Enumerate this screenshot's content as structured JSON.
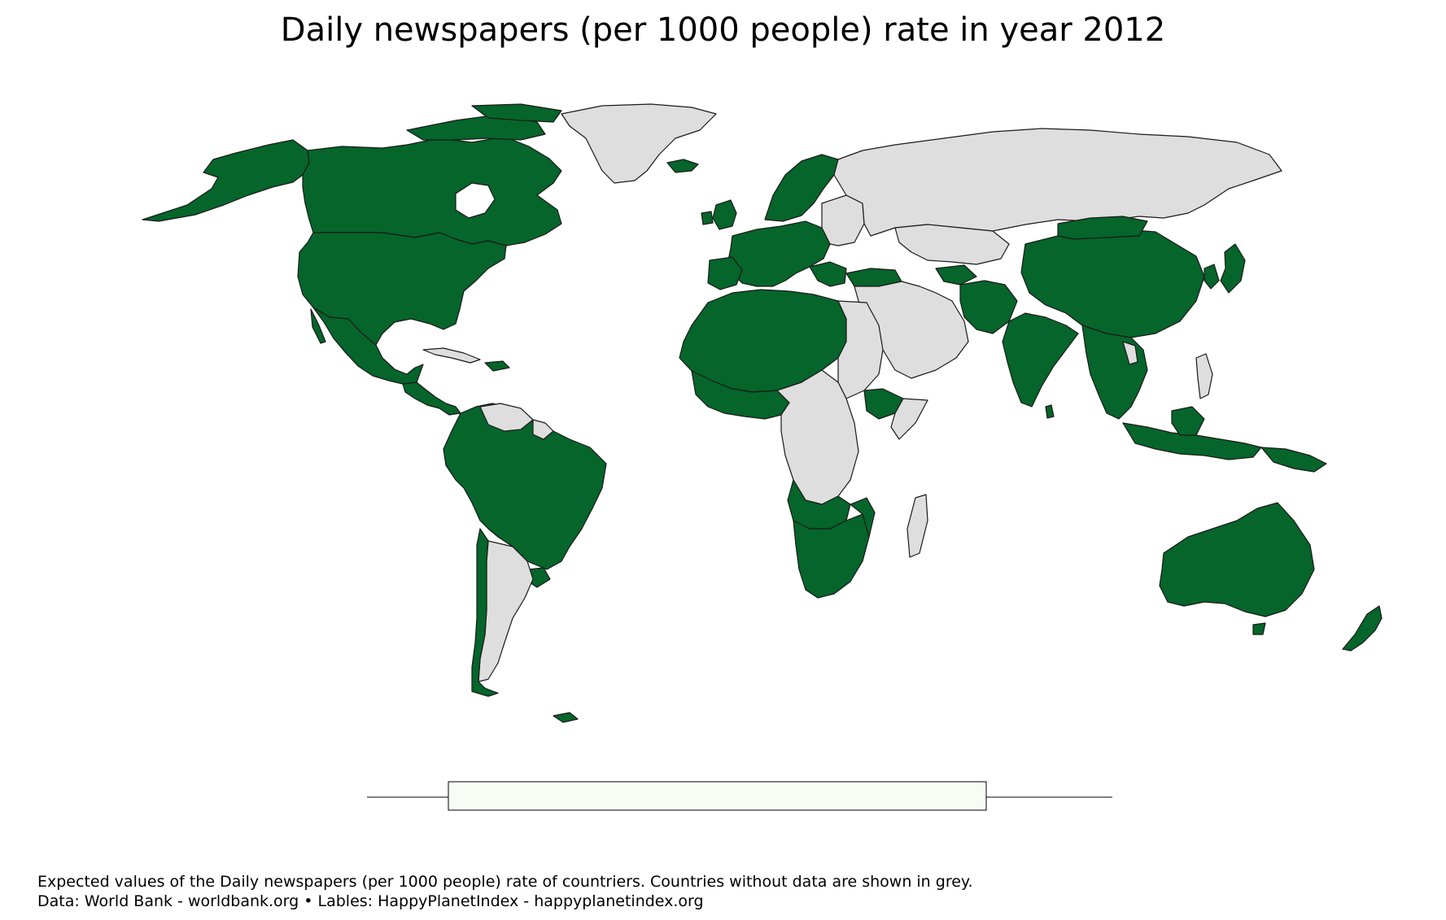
{
  "title": "Daily newspapers (per 1000 people) rate in year 2012",
  "colors": {
    "with_data": "#05652a",
    "no_data": "#dedede",
    "border": "#1a1a1a",
    "legend_box": "#f7fcf5"
  },
  "legend": {
    "type": "boxplot",
    "labels": []
  },
  "map": {
    "regions_with_data": [
      "Canada",
      "United States",
      "Mexico",
      "Guatemala",
      "Honduras",
      "Nicaragua",
      "Costa Rica",
      "Panama",
      "Haiti",
      "Dominican Republic",
      "Colombia",
      "Ecuador",
      "Peru",
      "Brazil",
      "Bolivia",
      "Paraguay",
      "Uruguay",
      "Chile",
      "Iceland",
      "Norway",
      "Sweden",
      "Finland",
      "Estonia",
      "Latvia",
      "Lithuania",
      "United Kingdom",
      "Ireland",
      "France",
      "Spain",
      "Italy",
      "Germany",
      "Poland",
      "Greece",
      "Turkey",
      "Morocco",
      "Western Sahara",
      "Mauritania",
      "Mali",
      "Algeria",
      "Tunisia",
      "Libya",
      "Niger",
      "Chad",
      "Senegal",
      "Guinea",
      "Burkina Faso",
      "Nigeria",
      "Cameroon",
      "Central African Republic",
      "Ethiopia",
      "Angola",
      "Zambia",
      "Namibia",
      "Botswana",
      "Zimbabwe",
      "Mozambique",
      "South Africa",
      "Rwanda",
      "Afghanistan",
      "Pakistan",
      "India",
      "Sri Lanka",
      "Nepal",
      "Bangladesh",
      "China",
      "Mongolia",
      "Myanmar",
      "Thailand",
      "Vietnam",
      "Cambodia",
      "Malaysia",
      "Indonesia",
      "Papua New Guinea",
      "Japan",
      "South Korea",
      "Australia",
      "New Zealand",
      "Turkmenistan"
    ],
    "regions_without_data": [
      "Greenland",
      "Russia",
      "Kazakhstan",
      "Uzbekistan",
      "Iran",
      "Iraq",
      "Saudi Arabia",
      "Yemen",
      "Oman",
      "Egypt",
      "Sudan",
      "South Sudan",
      "Somalia",
      "Kenya",
      "Tanzania",
      "DR Congo",
      "Gabon",
      "Congo",
      "Madagascar",
      "Argentina",
      "Venezuela",
      "Guyana",
      "Suriname",
      "Cuba",
      "North Korea",
      "Laos",
      "Philippines",
      "Ukraine",
      "Belarus",
      "Syria",
      "Jordan",
      "Ghana",
      "Liberia",
      "Sierra Leone",
      "Ivory Coast"
    ]
  },
  "footer": {
    "line1": "Expected values of the Daily newspapers (per 1000 people) rate of countriers. Countries without data are shown in grey.",
    "line2": "Data: World Bank - worldbank.org • Lables: HappyPlanetIndex - happyplanetindex.org"
  }
}
